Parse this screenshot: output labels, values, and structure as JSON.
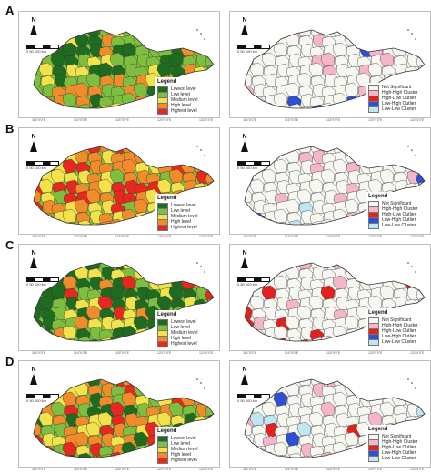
{
  "panels": [
    {
      "letter": "A",
      "left_legend_title": "Legend",
      "right_legend_title": ""
    },
    {
      "letter": "B",
      "left_legend_title": "Legend",
      "right_legend_title": "Legend"
    },
    {
      "letter": "C",
      "left_legend_title": "Legend",
      "right_legend_title": "Legend"
    },
    {
      "letter": "D",
      "left_legend_title": "Legend",
      "right_legend_title": "Legend"
    }
  ],
  "north_label": "N",
  "scale_label": "0 50 100 km",
  "risk_legend": [
    {
      "label": "Lowest level",
      "color": "#1f6b1f"
    },
    {
      "label": "Low level",
      "color": "#7fbf3f"
    },
    {
      "label": "Medium level",
      "color": "#f2e24b"
    },
    {
      "label": "High level",
      "color": "#f08c2a"
    },
    {
      "label": "Highest level",
      "color": "#e8281e"
    }
  ],
  "lisa_legend": [
    {
      "label": "Not Significant",
      "color": "#f7f7f2"
    },
    {
      "label": "High-High Cluster",
      "color": "#f4b6c8"
    },
    {
      "label": "High-Low Outlier",
      "color": "#e3221e"
    },
    {
      "label": "Low-High Outlier",
      "color": "#2f4fd6"
    },
    {
      "label": "Low-Low Cluster",
      "color": "#bfe6f2"
    }
  ],
  "x_ticks": [
    "114°0'0\"E",
    "116°0'0\"E",
    "118°0'0\"E",
    "120°0'0\"E",
    "122°0'0\"E"
  ],
  "colors": {
    "border": "#333333",
    "ocean": "#ffffff"
  }
}
